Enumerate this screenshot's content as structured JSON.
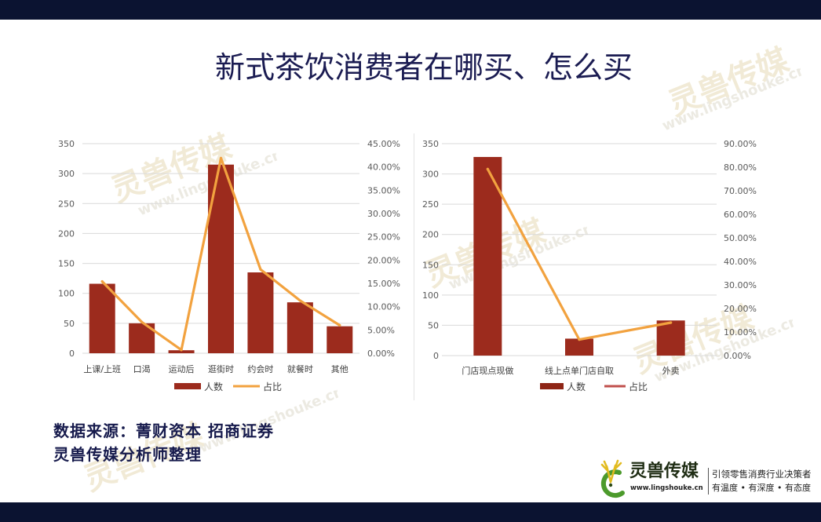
{
  "title": "新式茶饮消费者在哪买、怎么买",
  "source": {
    "line1": "数据来源：菁财资本 招商证券",
    "line2": "灵兽传媒分析师整理"
  },
  "logo": {
    "icon": "deer-antler-icon",
    "brand": "灵兽传媒",
    "url": "www.lingshouke.cn",
    "slogan": "引领零售消费行业决策者",
    "tagline": "有温度 • 有深度 • 有态度"
  },
  "watermark": {
    "brand": "灵兽传媒",
    "url": "www.lingshouke.cn"
  },
  "colors": {
    "header_bar": "#0b1331",
    "title": "#1b1c52",
    "source_text": "#161a4c",
    "bar": "#9c2b1d",
    "line": "#f2a23f",
    "grid": "#d9d9d9"
  },
  "chart_data": [
    {
      "type": "bar",
      "categories": [
        "上课/上班",
        "口渴",
        "运动后",
        "逛街时",
        "约会时",
        "就餐时",
        "其他"
      ],
      "series": [
        {
          "name": "人数",
          "type": "bar",
          "axis": "left",
          "color": "#9c2b1d",
          "values": [
            116,
            50,
            5,
            315,
            135,
            85,
            45
          ]
        },
        {
          "name": "占比",
          "type": "line",
          "axis": "right",
          "unit": "%",
          "color": "#f2a23f",
          "values": [
            15.4,
            6.7,
            0.7,
            41.9,
            18.0,
            11.3,
            6.0
          ]
        }
      ],
      "y_left": {
        "min": 0,
        "max": 350,
        "ticks": [
          0,
          50,
          100,
          150,
          200,
          250,
          300,
          350
        ]
      },
      "y_right": {
        "min": 0,
        "max": 45,
        "ticks": [
          "0.00%",
          "5.00%",
          "10.00%",
          "15.00%",
          "20.00%",
          "25.00%",
          "30.00%",
          "35.00%",
          "40.00%",
          "45.00%"
        ]
      },
      "grid": true,
      "legend": {
        "position": "bottom",
        "bar_color": "#9c2b1d",
        "line_color": "#f2a23f"
      }
    },
    {
      "type": "bar",
      "categories": [
        "门店现点现做",
        "线上点单门店自取",
        "外卖"
      ],
      "series": [
        {
          "name": "人数",
          "type": "bar",
          "axis": "left",
          "color": "#9c2b1d",
          "values": [
            328,
            28,
            58
          ]
        },
        {
          "name": "占比",
          "type": "line",
          "axis": "right",
          "unit": "%",
          "color": "#f2a23f",
          "values": [
            79.2,
            6.8,
            14.0
          ]
        }
      ],
      "y_left": {
        "min": 0,
        "max": 350,
        "ticks": [
          0,
          50,
          100,
          150,
          200,
          250,
          300,
          350
        ]
      },
      "y_right": {
        "min": 0,
        "max": 90,
        "ticks": [
          "0.00%",
          "10.00%",
          "20.00%",
          "30.00%",
          "40.00%",
          "50.00%",
          "60.00%",
          "70.00%",
          "80.00%",
          "90.00%"
        ]
      },
      "grid": true,
      "legend": {
        "position": "bottom",
        "bar_color": "#8e2516",
        "line_color": "#c0504d"
      }
    }
  ]
}
